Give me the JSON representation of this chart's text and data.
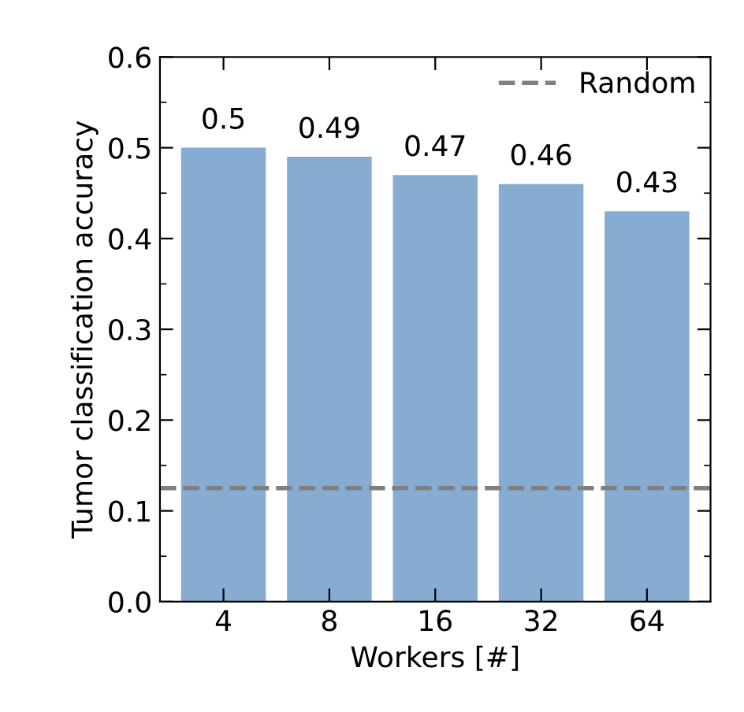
{
  "chart_data": {
    "type": "bar",
    "xlabel": "Workers [#]",
    "ylabel": "Tumor classification accuracy",
    "categories": [
      "4",
      "8",
      "16",
      "32",
      "64"
    ],
    "values": [
      0.5,
      0.49,
      0.47,
      0.46,
      0.43
    ],
    "color": "#86acd2",
    "ylim": [
      0.0,
      0.6
    ],
    "yticks": [
      {
        "value": 0.0,
        "label": "0.0"
      },
      {
        "value": 0.1,
        "label": "0.1"
      },
      {
        "value": 0.2,
        "label": "0.2"
      },
      {
        "value": 0.3,
        "label": "0.3"
      },
      {
        "value": 0.4,
        "label": "0.4"
      },
      {
        "value": 0.5,
        "label": "0.5"
      },
      {
        "value": 0.6,
        "label": "0.6"
      }
    ],
    "data_labels": true,
    "ref_lines": [
      {
        "axis": "y",
        "value": 0.125,
        "label": "Random",
        "color": "#808080",
        "line_style": "dashed"
      }
    ],
    "legend": "top right",
    "grid": false
  }
}
